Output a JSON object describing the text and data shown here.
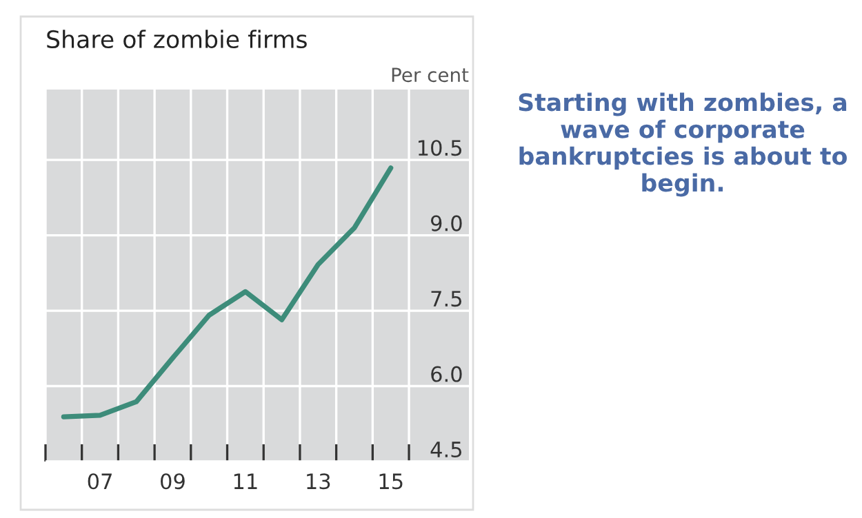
{
  "chart_data": {
    "type": "line",
    "title": "Share of zombie firms",
    "ylabel": "Per cent",
    "annotations": [
      "Starting with zombies, a wave of corporate bankruptcies is about to begin."
    ],
    "x": [
      2006,
      2007,
      2008,
      2009,
      2010,
      2011,
      2012,
      2013,
      2014,
      2015
    ],
    "series": [
      {
        "color": "#3d8c7a",
        "values": [
          5.39,
          5.42,
          5.69,
          6.56,
          7.41,
          7.88,
          7.32,
          8.42,
          9.15,
          10.34
        ]
      }
    ],
    "xlim": [
      2005.5,
      2017.15
    ],
    "ylim": [
      4.5,
      11.9
    ],
    "xticks": [
      {
        "value": 2005.5,
        "label": null
      },
      {
        "value": 2006.5,
        "label": null
      },
      {
        "value": 2007.5,
        "label": null
      },
      {
        "value": 2008.5,
        "label": null
      },
      {
        "value": 2009.5,
        "label": null
      },
      {
        "value": 2010.5,
        "label": null
      },
      {
        "value": 2011.5,
        "label": null
      },
      {
        "value": 2012.5,
        "label": null
      },
      {
        "value": 2013.5,
        "label": null
      },
      {
        "value": 2014.5,
        "label": null
      },
      {
        "value": 2015.5,
        "label": null
      },
      {
        "value": 2007,
        "label": "07"
      },
      {
        "value": 2009,
        "label": "09"
      },
      {
        "value": 2011,
        "label": "11"
      },
      {
        "value": 2013,
        "label": "13"
      },
      {
        "value": 2015,
        "label": "15"
      }
    ],
    "yticks": [
      {
        "value": 4.5,
        "label": "4.5"
      },
      {
        "value": 6.0,
        "label": "6.0"
      },
      {
        "value": 7.5,
        "label": "7.5"
      },
      {
        "value": 9.0,
        "label": "9.0"
      },
      {
        "value": 10.5,
        "label": "10.5"
      }
    ],
    "grid": true,
    "legend": false,
    "marker": "none",
    "line_style": "solid"
  }
}
